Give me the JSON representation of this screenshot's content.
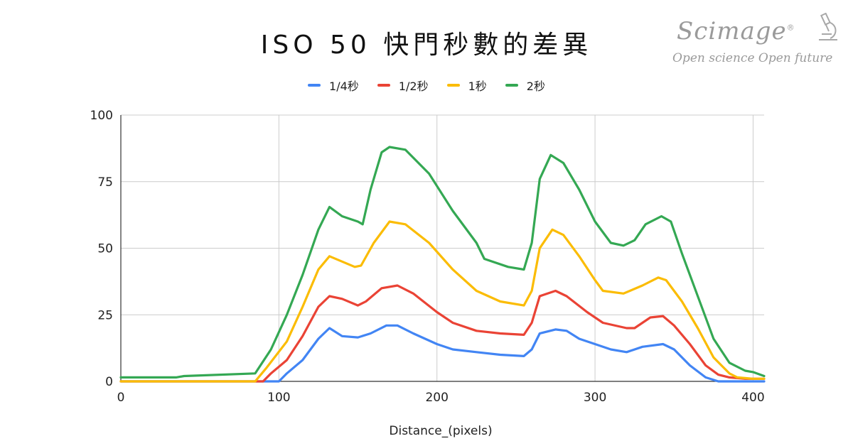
{
  "chart_data": {
    "type": "line",
    "title": "ISO 50 快門秒數的差異",
    "xlabel": "Distance_(pixels)",
    "ylabel": "",
    "xlim": [
      0,
      407
    ],
    "ylim": [
      0,
      100
    ],
    "xticks": [
      0,
      100,
      200,
      300,
      400
    ],
    "yticks": [
      0,
      25,
      50,
      75,
      100
    ],
    "grid": true,
    "legend_position": "top",
    "series": [
      {
        "name": "1/4秒",
        "color": "#4285f4",
        "points": [
          [
            0,
            0
          ],
          [
            100,
            0
          ],
          [
            105,
            3
          ],
          [
            115,
            8
          ],
          [
            125,
            16
          ],
          [
            132,
            20
          ],
          [
            140,
            17
          ],
          [
            150,
            16.5
          ],
          [
            158,
            18
          ],
          [
            168,
            21
          ],
          [
            175,
            21
          ],
          [
            185,
            18
          ],
          [
            200,
            14
          ],
          [
            210,
            12
          ],
          [
            225,
            11
          ],
          [
            240,
            10
          ],
          [
            255,
            9.5
          ],
          [
            260,
            12
          ],
          [
            265,
            18
          ],
          [
            275,
            19.5
          ],
          [
            282,
            19
          ],
          [
            290,
            16
          ],
          [
            300,
            14
          ],
          [
            310,
            12
          ],
          [
            320,
            11
          ],
          [
            330,
            13
          ],
          [
            343,
            14
          ],
          [
            350,
            12
          ],
          [
            360,
            6
          ],
          [
            370,
            1.5
          ],
          [
            378,
            0
          ],
          [
            407,
            0
          ]
        ]
      },
      {
        "name": "1/2秒",
        "color": "#ea4335",
        "points": [
          [
            0,
            0
          ],
          [
            90,
            0
          ],
          [
            95,
            3
          ],
          [
            105,
            8
          ],
          [
            115,
            17
          ],
          [
            125,
            28
          ],
          [
            132,
            32
          ],
          [
            140,
            31
          ],
          [
            150,
            28.5
          ],
          [
            155,
            30
          ],
          [
            165,
            35
          ],
          [
            175,
            36
          ],
          [
            185,
            33
          ],
          [
            200,
            26
          ],
          [
            210,
            22
          ],
          [
            225,
            19
          ],
          [
            240,
            18
          ],
          [
            255,
            17.5
          ],
          [
            260,
            22
          ],
          [
            265,
            32
          ],
          [
            275,
            34
          ],
          [
            282,
            32
          ],
          [
            295,
            26
          ],
          [
            305,
            22
          ],
          [
            320,
            20
          ],
          [
            325,
            20
          ],
          [
            335,
            24
          ],
          [
            343,
            24.5
          ],
          [
            350,
            21
          ],
          [
            360,
            14
          ],
          [
            370,
            6
          ],
          [
            378,
            2.5
          ],
          [
            385,
            1.5
          ],
          [
            395,
            1
          ],
          [
            407,
            1
          ]
        ]
      },
      {
        "name": "1秒",
        "color": "#fbbc04",
        "points": [
          [
            0,
            0
          ],
          [
            85,
            0
          ],
          [
            92,
            5
          ],
          [
            105,
            15
          ],
          [
            115,
            28
          ],
          [
            125,
            42
          ],
          [
            132,
            47
          ],
          [
            140,
            45
          ],
          [
            148,
            43
          ],
          [
            152,
            43.5
          ],
          [
            160,
            52
          ],
          [
            170,
            60
          ],
          [
            180,
            59
          ],
          [
            195,
            52
          ],
          [
            210,
            42
          ],
          [
            225,
            34
          ],
          [
            240,
            30
          ],
          [
            255,
            28.5
          ],
          [
            260,
            34
          ],
          [
            265,
            50
          ],
          [
            273,
            57
          ],
          [
            280,
            55
          ],
          [
            290,
            47
          ],
          [
            300,
            38
          ],
          [
            305,
            34
          ],
          [
            318,
            33
          ],
          [
            330,
            36
          ],
          [
            340,
            39
          ],
          [
            345,
            38
          ],
          [
            355,
            30
          ],
          [
            365,
            20
          ],
          [
            375,
            9
          ],
          [
            385,
            3
          ],
          [
            390,
            1.5
          ],
          [
            400,
            1
          ],
          [
            407,
            1
          ]
        ]
      },
      {
        "name": "2秒",
        "color": "#34a853",
        "points": [
          [
            0,
            1.5
          ],
          [
            35,
            1.5
          ],
          [
            40,
            2
          ],
          [
            85,
            3
          ],
          [
            95,
            12
          ],
          [
            105,
            25
          ],
          [
            115,
            40
          ],
          [
            125,
            57
          ],
          [
            132,
            65.5
          ],
          [
            140,
            62
          ],
          [
            150,
            60
          ],
          [
            153,
            59
          ],
          [
            158,
            72
          ],
          [
            165,
            86
          ],
          [
            170,
            88
          ],
          [
            180,
            87
          ],
          [
            195,
            78
          ],
          [
            210,
            64
          ],
          [
            225,
            52
          ],
          [
            230,
            46
          ],
          [
            245,
            43
          ],
          [
            255,
            42
          ],
          [
            260,
            52
          ],
          [
            265,
            76
          ],
          [
            272,
            85
          ],
          [
            280,
            82
          ],
          [
            290,
            72
          ],
          [
            300,
            60
          ],
          [
            310,
            52
          ],
          [
            318,
            51
          ],
          [
            325,
            53
          ],
          [
            332,
            59
          ],
          [
            342,
            62
          ],
          [
            348,
            60
          ],
          [
            355,
            48
          ],
          [
            365,
            32
          ],
          [
            375,
            16
          ],
          [
            385,
            7
          ],
          [
            395,
            4
          ],
          [
            400,
            3.5
          ],
          [
            407,
            2
          ]
        ]
      }
    ]
  },
  "brand": {
    "name": "Scimage",
    "registered": "®",
    "tagline": "Open science Open future",
    "icon": "microscope-icon"
  }
}
